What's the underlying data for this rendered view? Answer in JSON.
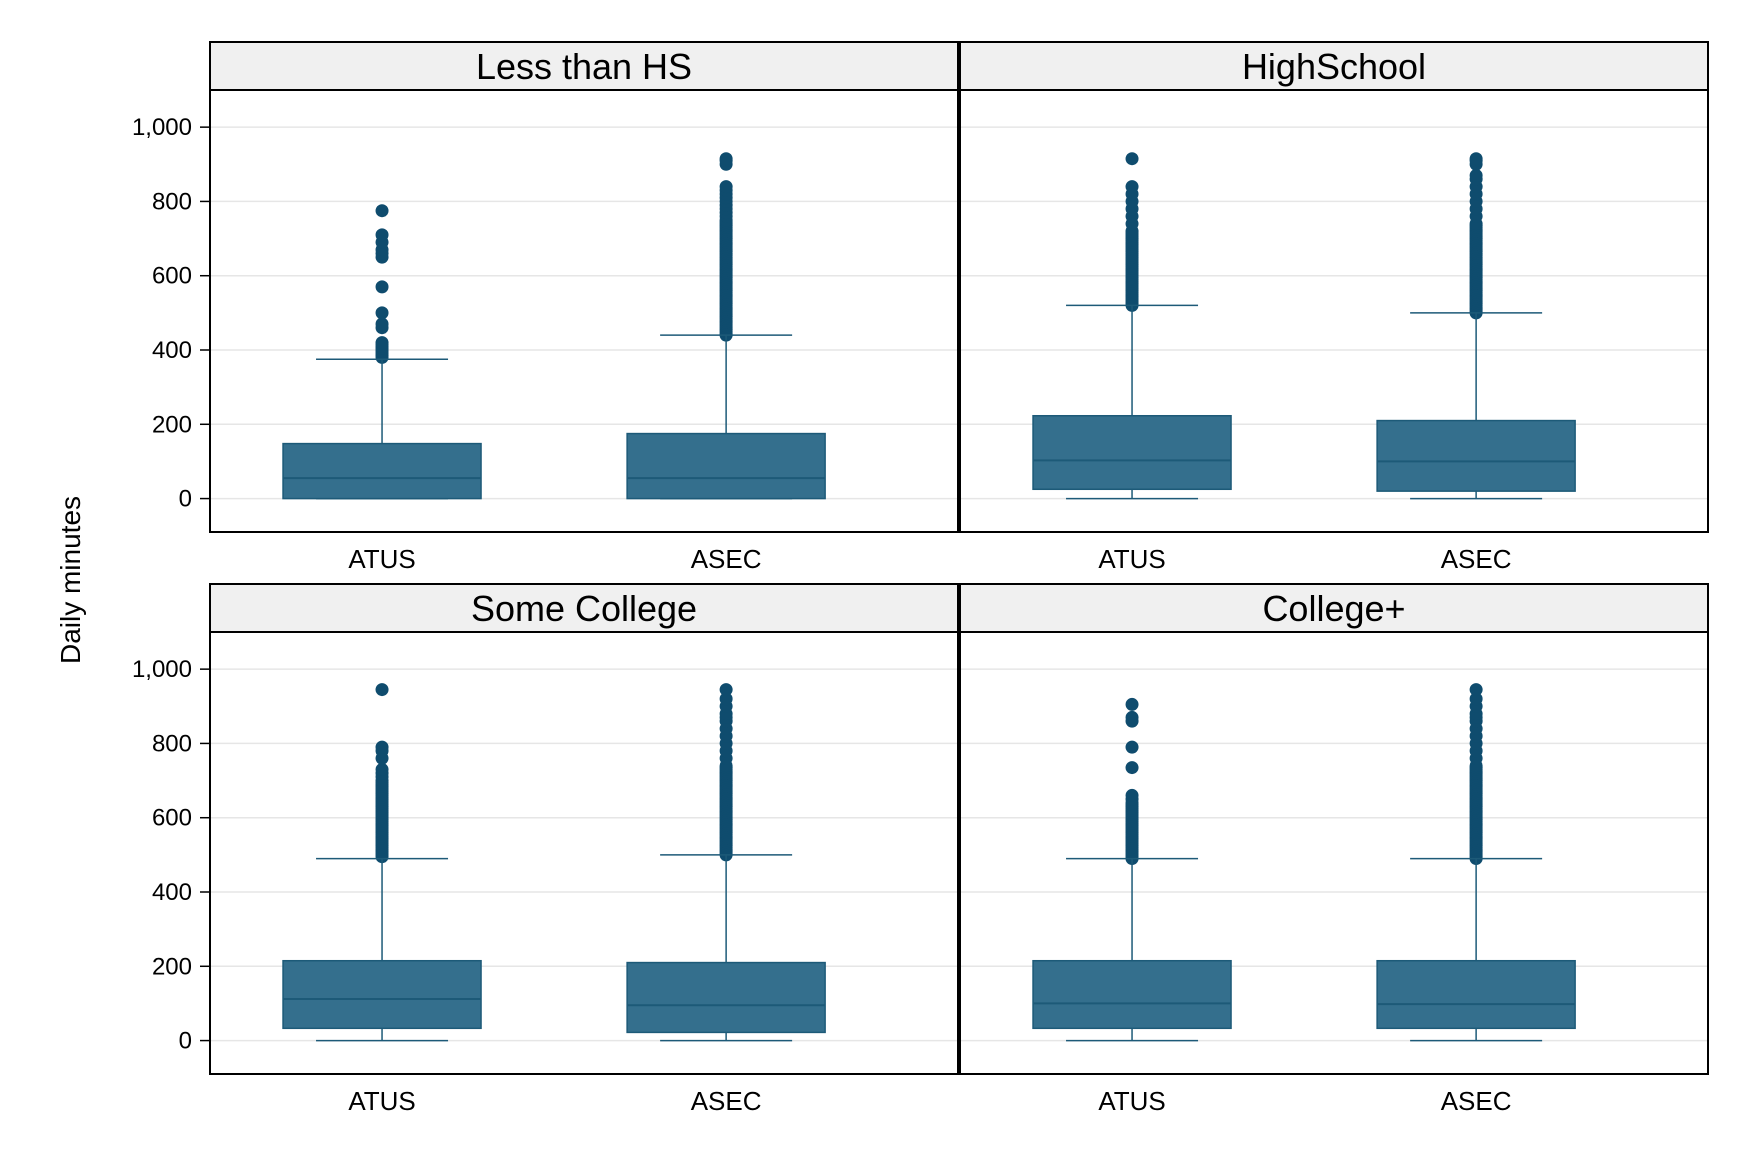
{
  "chart_data": {
    "type": "box",
    "ylabel": "Daily minutes",
    "ylim": [
      -90,
      1100
    ],
    "yticks": [
      0,
      200,
      400,
      600,
      800,
      1000
    ],
    "ytick_labels": [
      "0",
      "200",
      "400",
      "600",
      "800",
      "1,000"
    ],
    "grid": true,
    "colors": {
      "box_fill": "#346F8D",
      "box_edge": "#1D5A78",
      "outlier": "#0F4C6E",
      "strip_bg": "#F0F0F0",
      "grid": "#E6E6E6"
    },
    "panels": [
      {
        "title": "Less than HS",
        "categories": [
          "ATUS",
          "ASEC"
        ],
        "boxes": [
          {
            "category": "ATUS",
            "q1": 0,
            "median": 55,
            "q3": 148,
            "whisker_low": 0,
            "whisker_high": 375,
            "outliers": [
              380,
              385,
              390,
              395,
              400,
              405,
              410,
              415,
              420,
              460,
              470,
              500,
              570,
              650,
              660,
              670,
              690,
              710,
              775
            ]
          },
          {
            "category": "ASEC",
            "q1": 0,
            "median": 55,
            "q3": 175,
            "whisker_low": 0,
            "whisker_high": 440,
            "outliers_range": [
              440,
              750
            ],
            "outliers": [
              760,
              770,
              780,
              790,
              800,
              810,
              820,
              830,
              840,
              900,
              910,
              915
            ]
          }
        ]
      },
      {
        "title": "HighSchool",
        "categories": [
          "ATUS",
          "ASEC"
        ],
        "boxes": [
          {
            "category": "ATUS",
            "q1": 25,
            "median": 103,
            "q3": 223,
            "whisker_low": 0,
            "whisker_high": 520,
            "outliers_range": [
              520,
              720
            ],
            "outliers": [
              740,
              760,
              780,
              800,
              820,
              840,
              915
            ]
          },
          {
            "category": "ASEC",
            "q1": 20,
            "median": 100,
            "q3": 210,
            "whisker_low": 0,
            "whisker_high": 500,
            "outliers_range": [
              500,
              740
            ],
            "outliers": [
              760,
              780,
              800,
              820,
              840,
              860,
              870,
              900,
              910,
              915
            ]
          }
        ]
      },
      {
        "title": "Some College",
        "categories": [
          "ATUS",
          "ASEC"
        ],
        "boxes": [
          {
            "category": "ATUS",
            "q1": 33,
            "median": 112,
            "q3": 215,
            "whisker_low": 0,
            "whisker_high": 490,
            "outliers_range": [
              495,
              700
            ],
            "outliers": [
              710,
              720,
              730,
              760,
              780,
              790,
              945
            ]
          },
          {
            "category": "ASEC",
            "q1": 22,
            "median": 95,
            "q3": 210,
            "whisker_low": 0,
            "whisker_high": 500,
            "outliers_range": [
              500,
              740
            ],
            "outliers": [
              760,
              780,
              800,
              820,
              840,
              860,
              870,
              880,
              900,
              920,
              945
            ]
          }
        ]
      },
      {
        "title": "College+",
        "categories": [
          "ATUS",
          "ASEC"
        ],
        "boxes": [
          {
            "category": "ATUS",
            "q1": 33,
            "median": 100,
            "q3": 215,
            "whisker_low": 0,
            "whisker_high": 490,
            "outliers_range": [
              490,
              640
            ],
            "outliers": [
              650,
              660,
              735,
              790,
              860,
              870,
              905
            ]
          },
          {
            "category": "ASEC",
            "q1": 33,
            "median": 98,
            "q3": 215,
            "whisker_low": 0,
            "whisker_high": 490,
            "outliers_range": [
              490,
              740
            ],
            "outliers": [
              760,
              780,
              800,
              820,
              840,
              860,
              870,
              880,
              900,
              920,
              945
            ]
          }
        ]
      }
    ]
  }
}
